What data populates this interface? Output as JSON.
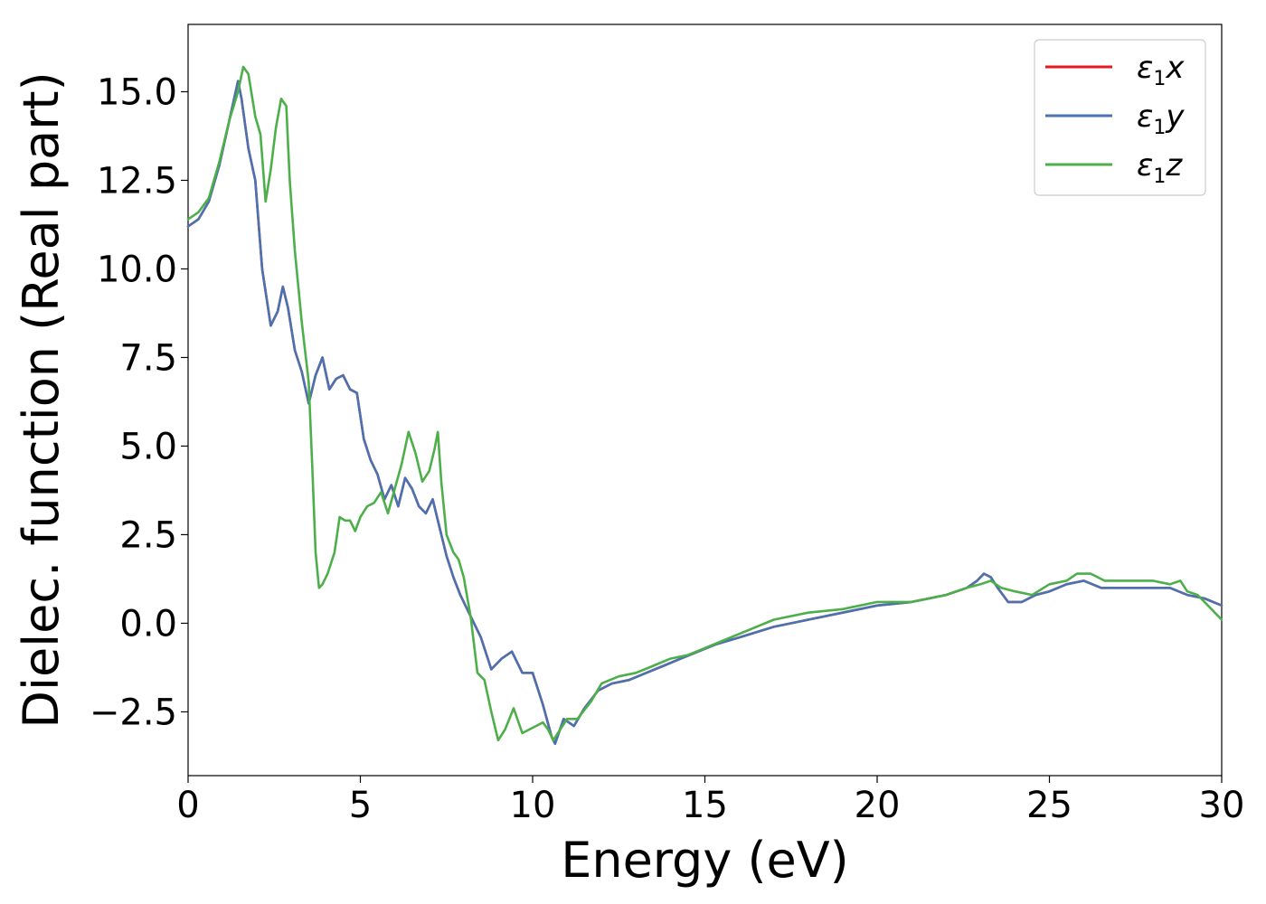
{
  "chart_data": {
    "type": "line",
    "xlabel": "Energy (eV)",
    "ylabel": "Dielec. function (Real part)",
    "xlim": [
      0,
      30
    ],
    "ylim": [
      -4.3,
      16.9
    ],
    "x_ticks": [
      0,
      5,
      10,
      15,
      20,
      25,
      30
    ],
    "y_ticks": [
      -2.5,
      0.0,
      2.5,
      5.0,
      7.5,
      10.0,
      12.5,
      15.0
    ],
    "y_tick_labels": [
      "−2.5",
      "0.0",
      "2.5",
      "5.0",
      "7.5",
      "10.0",
      "12.5",
      "15.0"
    ],
    "grid": false,
    "legend_position": "top-right",
    "series": [
      {
        "name": "ε1x",
        "legend_base": "ε",
        "legend_sub": "1",
        "legend_var": "x",
        "color": "#e41a1c",
        "x": [
          0,
          0.3,
          0.6,
          0.9,
          1.2,
          1.45,
          1.55,
          1.75,
          1.95,
          2.15,
          2.4,
          2.6,
          2.75,
          2.9,
          3.1,
          3.3,
          3.5,
          3.7,
          3.9,
          4.1,
          4.3,
          4.5,
          4.7,
          4.9,
          5.1,
          5.3,
          5.5,
          5.7,
          5.9,
          6.1,
          6.3,
          6.5,
          6.7,
          6.9,
          7.1,
          7.3,
          7.5,
          7.7,
          7.9,
          8.1,
          8.3,
          8.5,
          8.8,
          9.1,
          9.4,
          9.7,
          10.0,
          10.3,
          10.55,
          10.65,
          10.9,
          11.2,
          11.5,
          11.9,
          12.3,
          12.8,
          13.3,
          13.8,
          14.3,
          14.8,
          15.3,
          16,
          17,
          18,
          19,
          20,
          21,
          22,
          22.6,
          22.9,
          23.1,
          23.3,
          23.5,
          23.8,
          24.2,
          24.6,
          25,
          25.5,
          26,
          26.5,
          27,
          27.5,
          28,
          28.5,
          29,
          29.5,
          30
        ],
        "y": [
          11.2,
          11.4,
          11.9,
          12.9,
          14.2,
          15.3,
          14.8,
          13.4,
          12.5,
          10.0,
          8.4,
          8.8,
          9.5,
          8.9,
          7.7,
          7.1,
          6.2,
          7.0,
          7.5,
          6.6,
          6.9,
          7.0,
          6.6,
          6.5,
          5.2,
          4.6,
          4.2,
          3.5,
          3.9,
          3.3,
          4.1,
          3.8,
          3.3,
          3.1,
          3.5,
          2.7,
          1.9,
          1.3,
          0.8,
          0.4,
          0.0,
          -0.4,
          -1.3,
          -1.0,
          -0.8,
          -1.4,
          -1.4,
          -2.3,
          -3.2,
          -3.4,
          -2.7,
          -2.9,
          -2.4,
          -1.9,
          -1.7,
          -1.6,
          -1.4,
          -1.2,
          -1.0,
          -0.8,
          -0.6,
          -0.4,
          -0.1,
          0.1,
          0.3,
          0.5,
          0.6,
          0.8,
          1.0,
          1.2,
          1.4,
          1.3,
          1.0,
          0.6,
          0.6,
          0.8,
          0.9,
          1.1,
          1.2,
          1.0,
          1.0,
          1.0,
          1.0,
          1.0,
          0.8,
          0.7,
          0.5
        ]
      },
      {
        "name": "ε1y",
        "legend_base": "ε",
        "legend_sub": "1",
        "legend_var": "y",
        "color": "#4a72b0",
        "x": [
          0,
          0.3,
          0.6,
          0.9,
          1.2,
          1.45,
          1.55,
          1.75,
          1.95,
          2.15,
          2.4,
          2.6,
          2.75,
          2.9,
          3.1,
          3.3,
          3.5,
          3.7,
          3.9,
          4.1,
          4.3,
          4.5,
          4.7,
          4.9,
          5.1,
          5.3,
          5.5,
          5.7,
          5.9,
          6.1,
          6.3,
          6.5,
          6.7,
          6.9,
          7.1,
          7.3,
          7.5,
          7.7,
          7.9,
          8.1,
          8.3,
          8.5,
          8.8,
          9.1,
          9.4,
          9.7,
          10.0,
          10.3,
          10.55,
          10.65,
          10.9,
          11.2,
          11.5,
          11.9,
          12.3,
          12.8,
          13.3,
          13.8,
          14.3,
          14.8,
          15.3,
          16,
          17,
          18,
          19,
          20,
          21,
          22,
          22.6,
          22.9,
          23.1,
          23.3,
          23.5,
          23.8,
          24.2,
          24.6,
          25,
          25.5,
          26,
          26.5,
          27,
          27.5,
          28,
          28.5,
          29,
          29.5,
          30
        ],
        "y": [
          11.2,
          11.4,
          11.9,
          12.9,
          14.2,
          15.3,
          14.8,
          13.4,
          12.5,
          10.0,
          8.4,
          8.8,
          9.5,
          8.9,
          7.7,
          7.1,
          6.2,
          7.0,
          7.5,
          6.6,
          6.9,
          7.0,
          6.6,
          6.5,
          5.2,
          4.6,
          4.2,
          3.5,
          3.9,
          3.3,
          4.1,
          3.8,
          3.3,
          3.1,
          3.5,
          2.7,
          1.9,
          1.3,
          0.8,
          0.4,
          0.0,
          -0.4,
          -1.3,
          -1.0,
          -0.8,
          -1.4,
          -1.4,
          -2.3,
          -3.2,
          -3.4,
          -2.7,
          -2.9,
          -2.4,
          -1.9,
          -1.7,
          -1.6,
          -1.4,
          -1.2,
          -1.0,
          -0.8,
          -0.6,
          -0.4,
          -0.1,
          0.1,
          0.3,
          0.5,
          0.6,
          0.8,
          1.0,
          1.2,
          1.4,
          1.3,
          1.0,
          0.6,
          0.6,
          0.8,
          0.9,
          1.1,
          1.2,
          1.0,
          1.0,
          1.0,
          1.0,
          1.0,
          0.8,
          0.7,
          0.5
        ]
      },
      {
        "name": "ε1z",
        "legend_base": "ε",
        "legend_sub": "1",
        "legend_var": "z",
        "color": "#4daf4a",
        "x": [
          0,
          0.3,
          0.6,
          0.9,
          1.2,
          1.45,
          1.6,
          1.75,
          1.95,
          2.1,
          2.25,
          2.4,
          2.55,
          2.7,
          2.85,
          2.95,
          3.1,
          3.3,
          3.5,
          3.6,
          3.7,
          3.8,
          3.9,
          4.05,
          4.25,
          4.4,
          4.55,
          4.7,
          4.85,
          5.0,
          5.2,
          5.4,
          5.6,
          5.8,
          6.0,
          6.2,
          6.4,
          6.6,
          6.8,
          7.0,
          7.15,
          7.25,
          7.35,
          7.5,
          7.7,
          7.85,
          8.0,
          8.2,
          8.4,
          8.6,
          8.8,
          9.0,
          9.2,
          9.45,
          9.7,
          9.9,
          10.1,
          10.3,
          10.45,
          10.6,
          10.8,
          11.0,
          11.3,
          11.7,
          12.0,
          12.5,
          13.0,
          13.5,
          14.0,
          14.5,
          15.0,
          15.5,
          16,
          17,
          18,
          19,
          20,
          21,
          22,
          22.6,
          23.0,
          23.3,
          23.6,
          24,
          24.5,
          25,
          25.5,
          25.8,
          26.2,
          26.6,
          27,
          27.5,
          28,
          28.5,
          28.8,
          29.0,
          29.3,
          29.6,
          30
        ],
        "y": [
          11.4,
          11.6,
          12.0,
          13.0,
          14.2,
          15.0,
          15.7,
          15.5,
          14.3,
          13.8,
          11.9,
          12.8,
          14.0,
          14.8,
          14.6,
          12.5,
          10.5,
          8.5,
          6.8,
          4.5,
          2.0,
          1.0,
          1.1,
          1.4,
          2.0,
          3.0,
          2.9,
          2.9,
          2.6,
          3.0,
          3.3,
          3.4,
          3.7,
          3.1,
          3.8,
          4.5,
          5.4,
          4.8,
          4.0,
          4.3,
          4.9,
          5.4,
          4.0,
          2.5,
          2.0,
          1.8,
          1.3,
          0.2,
          -1.4,
          -1.6,
          -2.5,
          -3.3,
          -3.0,
          -2.4,
          -3.1,
          -3.0,
          -2.9,
          -2.8,
          -3.0,
          -3.3,
          -3.0,
          -2.7,
          -2.7,
          -2.2,
          -1.7,
          -1.5,
          -1.4,
          -1.2,
          -1.0,
          -0.9,
          -0.7,
          -0.5,
          -0.3,
          0.1,
          0.3,
          0.4,
          0.6,
          0.6,
          0.8,
          1.0,
          1.1,
          1.2,
          1.0,
          0.9,
          0.8,
          1.1,
          1.2,
          1.4,
          1.4,
          1.2,
          1.2,
          1.2,
          1.2,
          1.1,
          1.2,
          0.9,
          0.8,
          0.5,
          0.1
        ]
      }
    ]
  }
}
